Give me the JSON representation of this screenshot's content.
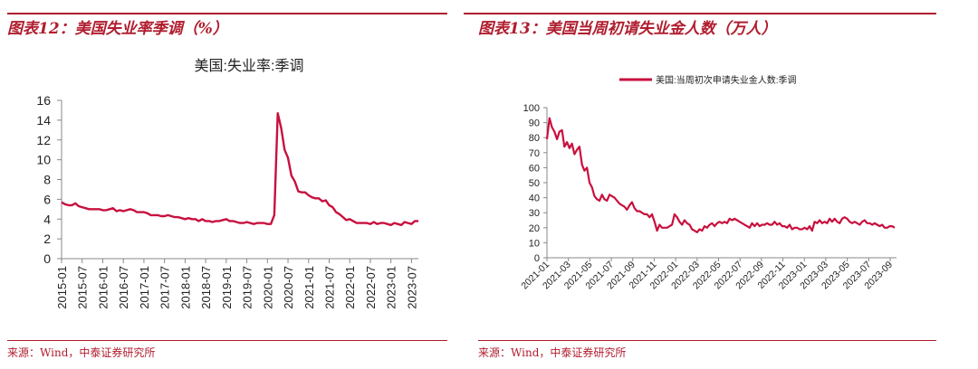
{
  "left": {
    "figure_title": "图表12：美国失业率季调（%）",
    "source": "来源：Wind，中泰证券研究所",
    "accent": "#b01d2e"
  },
  "right": {
    "figure_title": "图表13：美国当周初请失业金人数（万人）",
    "source": "来源：Wind，中泰证券研究所",
    "accent": "#b01d2e"
  },
  "chart_data": [
    {
      "type": "line",
      "title": "美国:失业率:季调",
      "ylim": [
        0,
        16
      ],
      "yticks": [
        0,
        2,
        4,
        6,
        8,
        10,
        12,
        14,
        16
      ],
      "x_tick_labels": [
        "2015-01",
        "2015-07",
        "2016-01",
        "2016-07",
        "2017-01",
        "2017-07",
        "2018-01",
        "2018-07",
        "2019-01",
        "2019-07",
        "2020-01",
        "2020-07",
        "2021-01",
        "2021-07",
        "2022-01",
        "2022-07",
        "2023-01",
        "2023-07"
      ],
      "series_color": "#c8103e",
      "x": [
        "2015-01",
        "2015-02",
        "2015-03",
        "2015-04",
        "2015-05",
        "2015-06",
        "2015-07",
        "2015-08",
        "2015-09",
        "2015-10",
        "2015-11",
        "2015-12",
        "2016-01",
        "2016-02",
        "2016-03",
        "2016-04",
        "2016-05",
        "2016-06",
        "2016-07",
        "2016-08",
        "2016-09",
        "2016-10",
        "2016-11",
        "2016-12",
        "2017-01",
        "2017-02",
        "2017-03",
        "2017-04",
        "2017-05",
        "2017-06",
        "2017-07",
        "2017-08",
        "2017-09",
        "2017-10",
        "2017-11",
        "2017-12",
        "2018-01",
        "2018-02",
        "2018-03",
        "2018-04",
        "2018-05",
        "2018-06",
        "2018-07",
        "2018-08",
        "2018-09",
        "2018-10",
        "2018-11",
        "2018-12",
        "2019-01",
        "2019-02",
        "2019-03",
        "2019-04",
        "2019-05",
        "2019-06",
        "2019-07",
        "2019-08",
        "2019-09",
        "2019-10",
        "2019-11",
        "2019-12",
        "2020-01",
        "2020-02",
        "2020-03",
        "2020-04",
        "2020-05",
        "2020-06",
        "2020-07",
        "2020-08",
        "2020-09",
        "2020-10",
        "2020-11",
        "2020-12",
        "2021-01",
        "2021-02",
        "2021-03",
        "2021-04",
        "2021-05",
        "2021-06",
        "2021-07",
        "2021-08",
        "2021-09",
        "2021-10",
        "2021-11",
        "2021-12",
        "2022-01",
        "2022-02",
        "2022-03",
        "2022-04",
        "2022-05",
        "2022-06",
        "2022-07",
        "2022-08",
        "2022-09",
        "2022-10",
        "2022-11",
        "2022-12",
        "2023-01",
        "2023-02",
        "2023-03",
        "2023-04",
        "2023-05",
        "2023-06",
        "2023-07",
        "2023-08",
        "2023-09"
      ],
      "values": [
        5.7,
        5.5,
        5.4,
        5.4,
        5.6,
        5.3,
        5.2,
        5.1,
        5.0,
        5.0,
        5.0,
        5.0,
        4.9,
        4.9,
        5.0,
        5.1,
        4.8,
        4.9,
        4.8,
        4.9,
        5.0,
        4.9,
        4.7,
        4.7,
        4.7,
        4.6,
        4.4,
        4.4,
        4.4,
        4.3,
        4.3,
        4.4,
        4.3,
        4.2,
        4.2,
        4.1,
        4.0,
        4.1,
        4.0,
        4.0,
        3.8,
        4.0,
        3.8,
        3.8,
        3.7,
        3.8,
        3.8,
        3.9,
        4.0,
        3.8,
        3.8,
        3.7,
        3.6,
        3.6,
        3.7,
        3.6,
        3.5,
        3.6,
        3.6,
        3.6,
        3.5,
        3.5,
        4.4,
        14.7,
        13.2,
        11.0,
        10.2,
        8.4,
        7.8,
        6.8,
        6.7,
        6.7,
        6.4,
        6.2,
        6.1,
        6.1,
        5.8,
        5.9,
        5.4,
        5.2,
        4.7,
        4.5,
        4.2,
        3.9,
        4.0,
        3.8,
        3.6,
        3.6,
        3.6,
        3.6,
        3.5,
        3.7,
        3.5,
        3.6,
        3.6,
        3.5,
        3.4,
        3.6,
        3.5,
        3.4,
        3.7,
        3.6,
        3.5,
        3.8,
        3.8
      ]
    },
    {
      "type": "line",
      "legend": "美国:当周初次申请失业金人数:季调",
      "ylim": [
        0,
        100
      ],
      "yticks": [
        0,
        10,
        20,
        30,
        40,
        50,
        60,
        70,
        80,
        90,
        100
      ],
      "x_tick_labels": [
        "2021-01",
        "2021-03",
        "2021-05",
        "2021-07",
        "2021-09",
        "2021-11",
        "2022-01",
        "2022-03",
        "2022-05",
        "2022-07",
        "2022-09",
        "2022-11",
        "2023-01",
        "2023-03",
        "2023-05",
        "2023-07",
        "2023-09"
      ],
      "series_color": "#c8103e",
      "values": [
        79,
        93,
        87,
        84,
        79,
        84,
        85,
        74,
        77,
        73,
        76,
        69,
        72,
        74,
        62,
        58,
        60,
        50,
        47,
        41,
        39,
        38,
        42,
        39,
        38,
        42,
        41,
        40,
        38,
        36,
        35,
        34,
        32,
        35,
        37,
        33,
        31,
        31,
        30,
        29,
        29,
        27,
        29,
        24,
        18,
        22,
        20,
        20,
        20,
        21,
        22,
        29,
        27,
        24,
        22,
        25,
        23,
        22,
        19,
        18,
        17,
        19,
        18,
        21,
        20,
        22,
        23,
        21,
        23,
        24,
        23,
        24,
        23,
        26,
        25,
        26,
        25,
        24,
        23,
        22,
        21,
        20,
        23,
        21,
        23,
        21,
        22,
        22,
        23,
        22,
        22,
        24,
        22,
        23,
        21,
        21,
        20,
        22,
        19,
        20,
        20,
        19,
        19,
        20,
        19,
        21,
        18,
        24,
        23,
        25,
        23,
        24,
        23,
        26,
        24,
        26,
        24,
        23,
        26,
        27,
        26,
        24,
        23,
        24,
        23,
        22,
        24,
        25,
        23,
        23,
        22,
        23,
        22,
        21,
        22,
        20,
        20,
        21,
        21,
        20
      ]
    }
  ]
}
